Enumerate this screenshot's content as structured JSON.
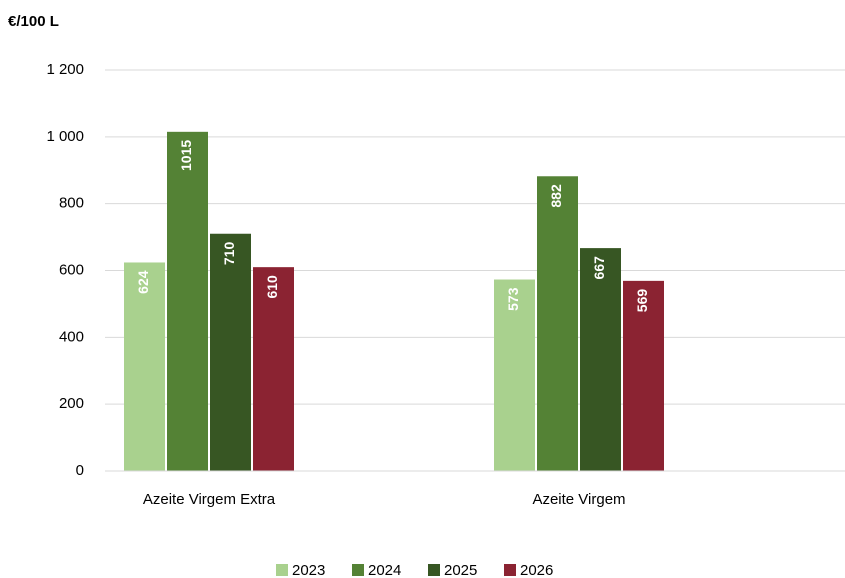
{
  "chart_data": {
    "type": "bar",
    "y_label": "€/100 L",
    "categories": [
      "Azeite Virgem Extra",
      "Azeite Virgem"
    ],
    "series": [
      {
        "name": "2023",
        "color": "#a9d18e",
        "values": [
          624,
          573
        ]
      },
      {
        "name": "2024",
        "color": "#548235",
        "values": [
          1015,
          882
        ]
      },
      {
        "name": "2025",
        "color": "#375623",
        "values": [
          710,
          667
        ]
      },
      {
        "name": "2026",
        "color": "#8b2332",
        "values": [
          610,
          569
        ]
      }
    ],
    "ylim": [
      0,
      1200
    ],
    "yticks": [
      0,
      200,
      400,
      600,
      800,
      {
        "value": 1000,
        "label": "1 000"
      },
      {
        "value": 1200,
        "label": "1 200"
      }
    ],
    "grid": true,
    "legend": "bottom",
    "data_labels": true
  }
}
